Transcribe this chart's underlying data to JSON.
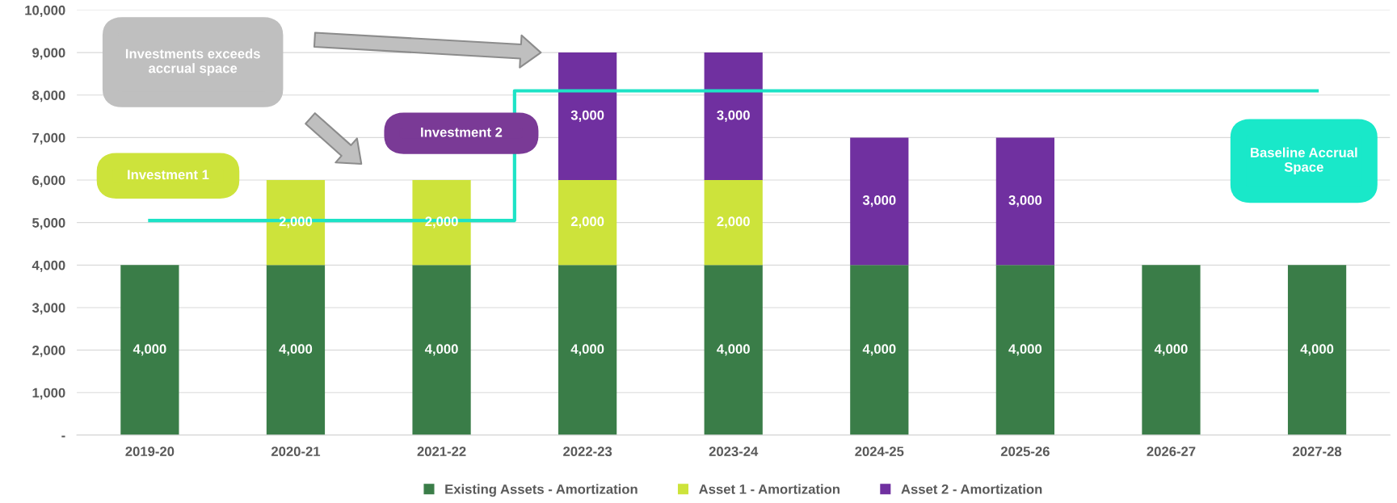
{
  "chart_data": {
    "type": "bar",
    "stacked": true,
    "categories": [
      "2019-20",
      "2020-21",
      "2021-22",
      "2022-23",
      "2023-24",
      "2024-25",
      "2025-26",
      "2026-27",
      "2027-28"
    ],
    "series": [
      {
        "name": "Existing Assets - Amortization",
        "color": "#3a7d48",
        "values": [
          4000,
          4000,
          4000,
          4000,
          4000,
          4000,
          4000,
          4000,
          4000
        ],
        "value_labels": [
          "4,000",
          "4,000",
          "4,000",
          "4,000",
          "4,000",
          "4,000",
          "4,000",
          "4,000",
          "4,000"
        ]
      },
      {
        "name": "Asset 1 - Amortization",
        "color": "#cde33b",
        "values": [
          null,
          2000,
          2000,
          2000,
          2000,
          null,
          null,
          null,
          null
        ],
        "value_labels": [
          null,
          "2,000",
          "2,000",
          "2,000",
          "2,000",
          null,
          null,
          null,
          null
        ]
      },
      {
        "name": "Asset 2 - Amortization",
        "color": "#7030a0",
        "values": [
          null,
          null,
          null,
          3000,
          3000,
          3000,
          3000,
          null,
          null
        ],
        "value_labels": [
          null,
          null,
          null,
          "3,000",
          "3,000",
          "3,000",
          "3,000",
          null,
          null
        ]
      },
      {
        "type": "step",
        "color": "#1de3c6",
        "values": [
          5050,
          5050,
          5050,
          8100,
          8100,
          8100,
          8100,
          8100,
          8100
        ]
      }
    ],
    "ylim": [
      0,
      10000
    ],
    "yticks": [
      {
        "value": 0,
        "label": "-"
      },
      {
        "value": 1000,
        "label": "1,000"
      },
      {
        "value": 2000,
        "label": "2,000"
      },
      {
        "value": 3000,
        "label": "3,000"
      },
      {
        "value": 4000,
        "label": "4,000"
      },
      {
        "value": 5000,
        "label": "5,000"
      },
      {
        "value": 6000,
        "label": "6,000"
      },
      {
        "value": 7000,
        "label": "7,000"
      },
      {
        "value": 8000,
        "label": "8,000"
      },
      {
        "value": 9000,
        "label": "9,000"
      },
      {
        "value": 10000,
        "label": "10,000"
      }
    ],
    "grid": "y",
    "legend": "bottom",
    "annotations": [
      "Investments exceeds accrual space",
      "Investment 1",
      "Investment 2",
      "Baseline Accrual Space"
    ]
  }
}
